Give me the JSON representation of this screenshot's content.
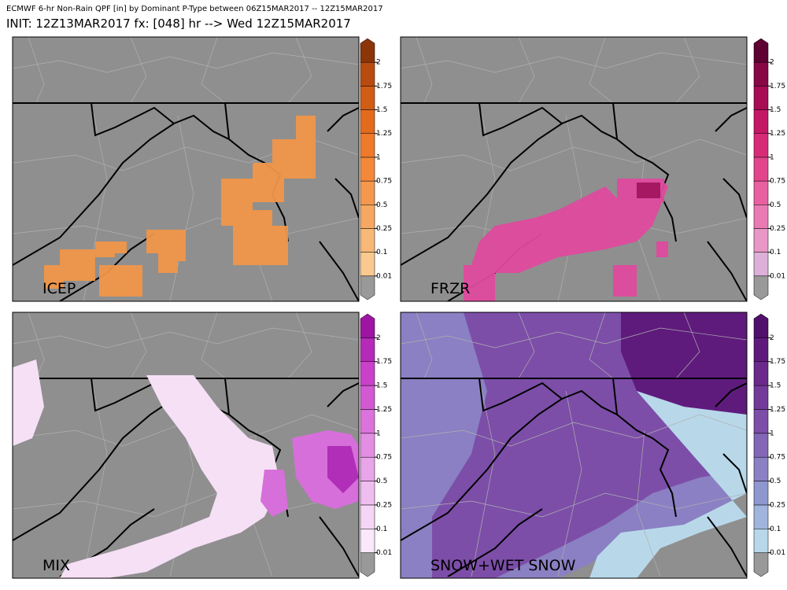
{
  "header": {
    "title": "ECMWF 6-hr Non-Rain QPF [in] by Dominant P-Type between 06Z15MAR2017 -- 12Z15MAR2017",
    "subtitle": "INIT: 12Z13MAR2017 fx: [048] hr --> Wed 12Z15MAR2017"
  },
  "colorbar_labels": [
    "0.01",
    "0.1",
    "0.25",
    "0.5",
    "0.75",
    "1",
    "1.25",
    "1.5",
    "1.75",
    "2"
  ],
  "panels": [
    {
      "label": "ICEP",
      "colors": [
        "#999999",
        "#f9c98f",
        "#f8b878",
        "#f6a862",
        "#f5984e",
        "#f4883a",
        "#ee7a2b",
        "#e36b1e",
        "#d15c15",
        "#b84c10",
        "#8c3508"
      ]
    },
    {
      "label": "FRZR",
      "colors": [
        "#999999",
        "#ddb0d8",
        "#e897c7",
        "#ea7ab4",
        "#e8609f",
        "#e2458c",
        "#d72b78",
        "#c41866",
        "#a80c55",
        "#880745",
        "#5e0232"
      ]
    },
    {
      "label": "MIX",
      "colors": [
        "#999999",
        "#fbe9fb",
        "#f5d5f5",
        "#efbdef",
        "#e9a5e9",
        "#e38de3",
        "#dc72dc",
        "#d359d3",
        "#c940c9",
        "#b52ab8",
        "#9e15a3"
      ]
    },
    {
      "label": "SNOW+WET SNOW",
      "colors": [
        "#999999",
        "#b8d8ea",
        "#a0b4dc",
        "#8f97cf",
        "#8a80c3",
        "#8366b6",
        "#7c4ea8",
        "#733a9a",
        "#6a298b",
        "#5e1b7c",
        "#51106b"
      ]
    }
  ]
}
